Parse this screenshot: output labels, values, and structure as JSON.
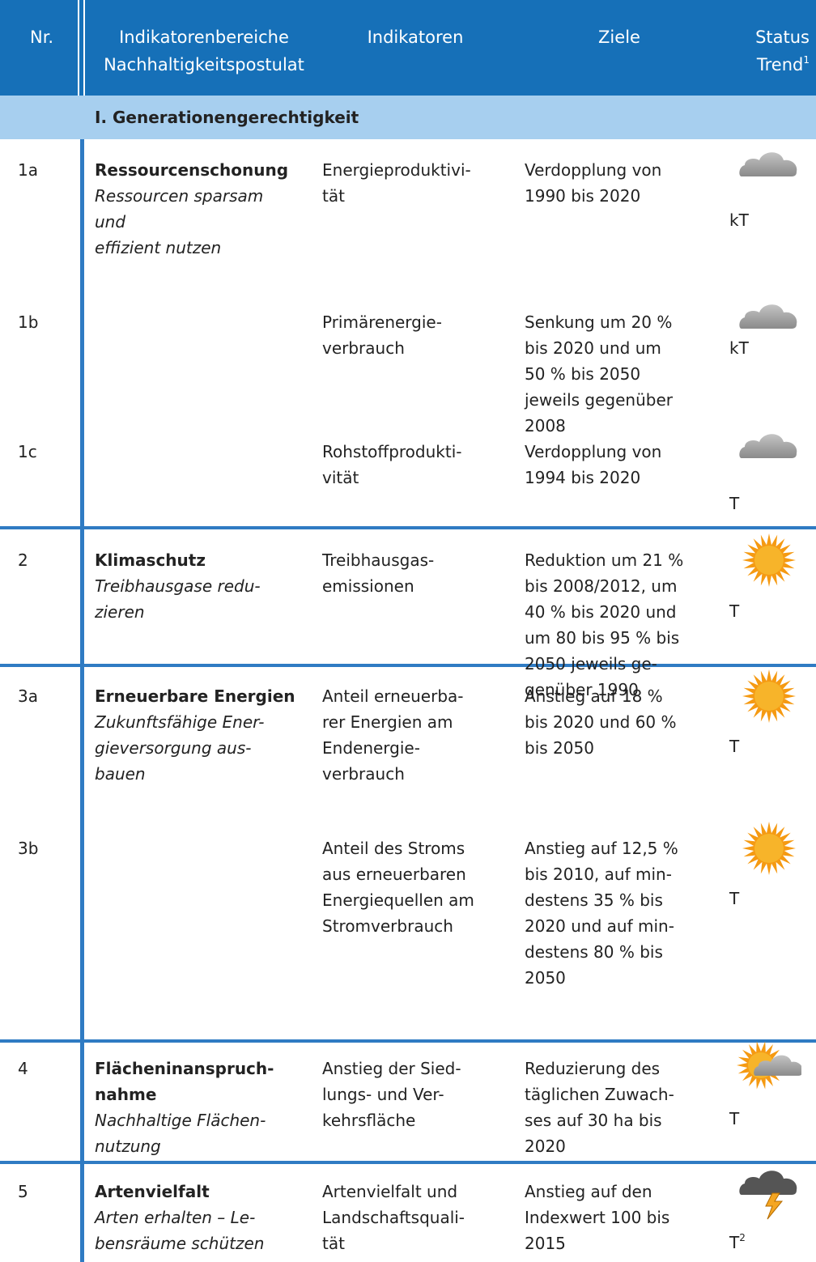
{
  "header": {
    "nr": "Nr.",
    "area": [
      "Indikatorenbereiche",
      "Nachhaltigkeitspostulat"
    ],
    "indicator": "Indikatoren",
    "goal": "Ziele",
    "status": [
      "Status",
      "Trend"
    ],
    "status_note": "1"
  },
  "section": "I. Generationengerechtigkeit",
  "rows": [
    {
      "nr": "1a",
      "area_title": [
        "Ressourcenschonung"
      ],
      "area_subtitle": [
        "Ressourcen sparsam",
        "und",
        "effizient nutzen"
      ],
      "indicator": [
        "Energieproduktivi-",
        "tät"
      ],
      "goal": [
        "Verdopplung von",
        "1990 bis 2020"
      ],
      "status": "kT",
      "icon": "cloud"
    },
    {
      "nr": "1b",
      "indicator": [
        "Primärenergie-",
        "verbrauch"
      ],
      "goal": [
        "Senkung um 20 %",
        "bis 2020 und um",
        "50 % bis 2050",
        "jeweils gegenüber",
        "2008"
      ],
      "status": "kT",
      "icon": "cloud"
    },
    {
      "nr": "1c",
      "indicator": [
        "Rohstoffprodukti-",
        "vität"
      ],
      "goal": [
        "Verdopplung von",
        "1994 bis 2020"
      ],
      "status": "T",
      "icon": "cloud"
    },
    {
      "nr": "2",
      "area_title": [
        "Klimaschutz"
      ],
      "area_subtitle": [
        "Treibhausgase redu-",
        "zieren"
      ],
      "indicator": [
        "Treibhausgas-",
        "emissionen"
      ],
      "goal": [
        "Reduktion um 21 %",
        "bis 2008/2012, um",
        "40 % bis 2020 und",
        "um 80 bis 95 % bis",
        "2050 jeweils ge-",
        "genüber 1990"
      ],
      "status": "T",
      "icon": "sun"
    },
    {
      "nr": "3a",
      "area_title": [
        "Erneuerbare Energien"
      ],
      "area_subtitle": [
        "Zukunftsfähige Ener-",
        "gieversorgung aus-",
        "bauen"
      ],
      "indicator": [
        "Anteil erneuerba-",
        "rer Energien am",
        "Endenergie-",
        "verbrauch"
      ],
      "goal": [
        "Anstieg auf 18 %",
        "bis 2020 und 60 %",
        "bis 2050"
      ],
      "status": "T",
      "icon": "sun"
    },
    {
      "nr": "3b",
      "indicator": [
        "Anteil des Stroms",
        "aus erneuerbaren",
        "Energiequellen am",
        "Stromverbrauch"
      ],
      "goal": [
        "Anstieg auf 12,5 %",
        "bis 2010, auf min-",
        "destens 35 % bis",
        "2020 und auf min-",
        "destens 80 % bis",
        "2050"
      ],
      "status": "T",
      "icon": "sun"
    },
    {
      "nr": "4",
      "area_title": [
        "Flächeninanspruch-",
        "nahme"
      ],
      "area_subtitle": [
        "Nachhaltige Flächen-",
        "nutzung"
      ],
      "indicator": [
        "Anstieg der Sied-",
        "lungs- und Ver-",
        "kehrsfläche"
      ],
      "goal": [
        "Reduzierung des",
        "täglichen Zuwach-",
        "ses auf 30 ha bis",
        "2020"
      ],
      "status": "T",
      "icon": "sun_cloud"
    },
    {
      "nr": "5",
      "area_title": [
        "Artenvielfalt"
      ],
      "area_subtitle": [
        "Arten erhalten – Le-",
        "bensräume schützen"
      ],
      "indicator": [
        "Artenvielfalt und",
        "Landschaftsquali-",
        "tät"
      ],
      "goal": [
        "Anstieg auf den",
        "Indexwert 100 bis",
        "2015"
      ],
      "status": "T",
      "status_note": "2",
      "icon": "storm"
    }
  ]
}
